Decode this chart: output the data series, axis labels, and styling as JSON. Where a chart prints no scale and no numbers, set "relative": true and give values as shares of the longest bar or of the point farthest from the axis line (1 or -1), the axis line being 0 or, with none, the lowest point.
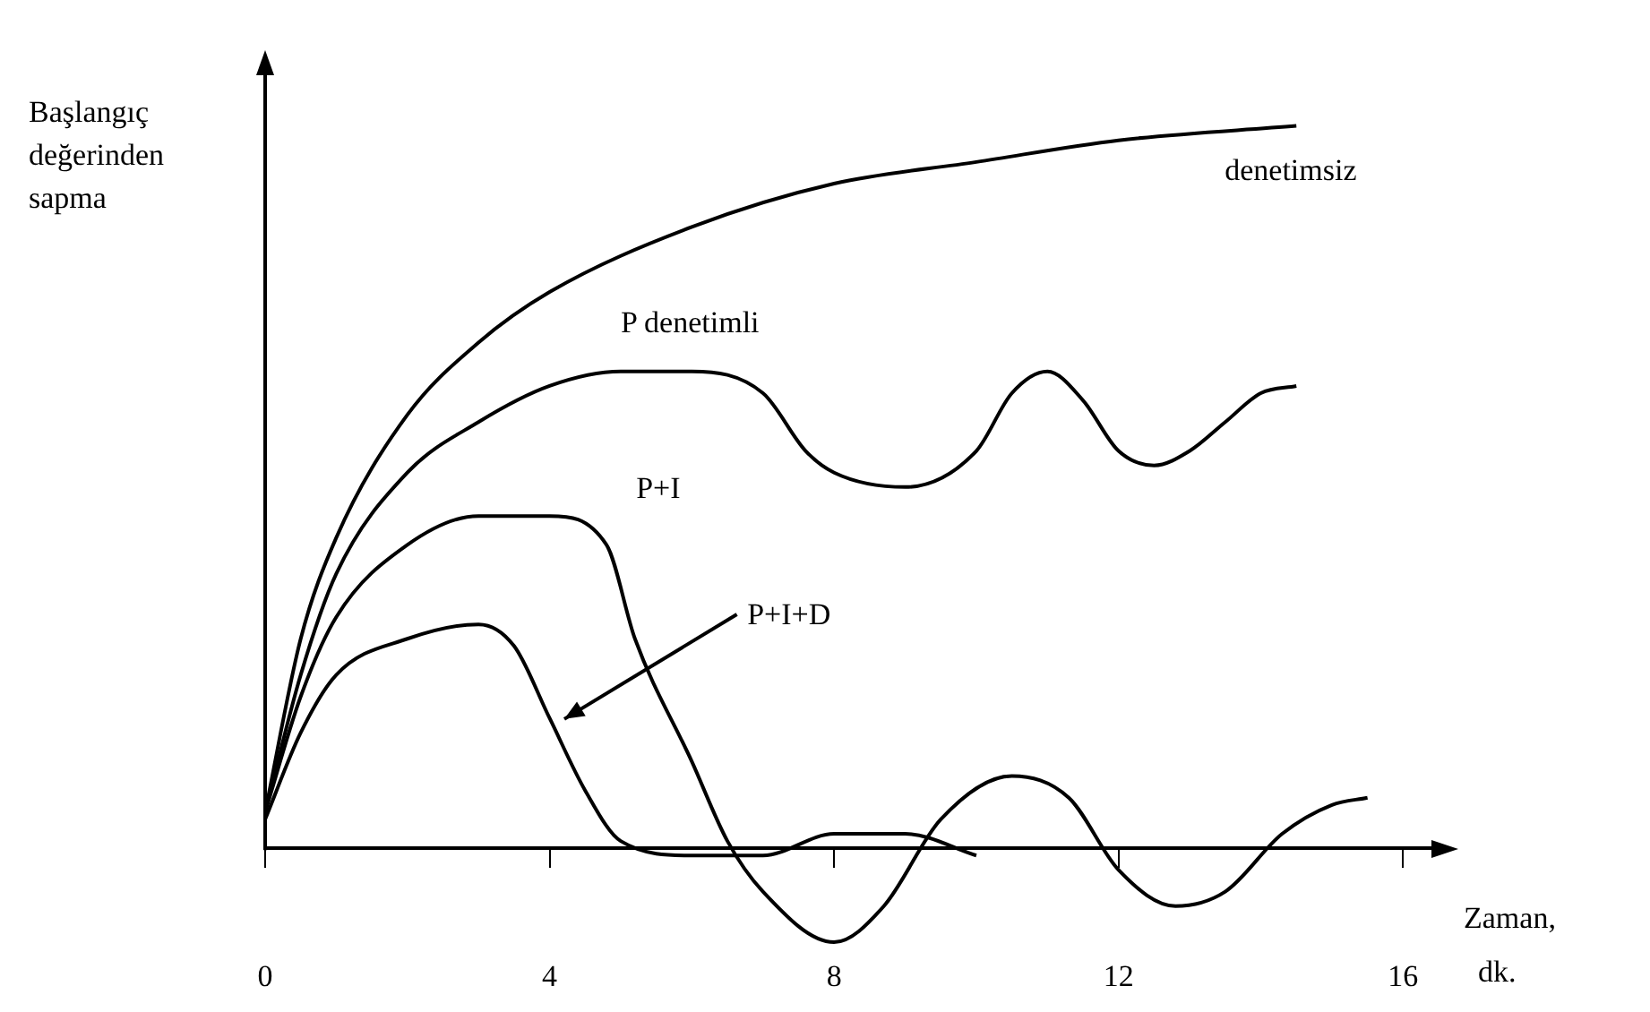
{
  "chart_data": {
    "type": "line",
    "relative": true,
    "ylabel": "Başlangıç değerinden sapma",
    "xlabel": "Zaman, dk.",
    "xlim": [
      0,
      16.5
    ],
    "xticks": [
      0,
      4,
      8,
      12,
      16
    ],
    "grid": false,
    "legend": false,
    "marker": "none",
    "line_style": "solid",
    "series": [
      {
        "name": "denetimsiz",
        "color": "#000000",
        "x": [
          0,
          0.5,
          1,
          2,
          3,
          4,
          6,
          8,
          10,
          12,
          14.5
        ],
        "values": [
          0.05,
          0.29,
          0.43,
          0.6,
          0.7,
          0.77,
          0.86,
          0.92,
          0.95,
          0.98,
          1.0
        ]
      },
      {
        "name": "P denetimli",
        "color": "#000000",
        "x": [
          0,
          0.5,
          1,
          2,
          3,
          4,
          5,
          6,
          7,
          7.6,
          8,
          9,
          10,
          10.5,
          11,
          11.5,
          12,
          12.5,
          13,
          13.5,
          14,
          14.5
        ],
        "values": [
          0.05,
          0.24,
          0.38,
          0.52,
          0.59,
          0.64,
          0.66,
          0.66,
          0.63,
          0.55,
          0.52,
          0.5,
          0.55,
          0.63,
          0.66,
          0.62,
          0.55,
          0.53,
          0.55,
          0.59,
          0.63,
          0.64
        ]
      },
      {
        "name": "P+I",
        "color": "#000000",
        "x": [
          0,
          0.5,
          1,
          2,
          3,
          4,
          4.8,
          5.2,
          6,
          6.5,
          7,
          8,
          8.7,
          9.5,
          10.5,
          11.3,
          12,
          12.8,
          13.5,
          14.3,
          15,
          15.5
        ],
        "values": [
          0.05,
          0.21,
          0.32,
          0.42,
          0.46,
          0.46,
          0.42,
          0.29,
          0.12,
          0.01,
          -0.06,
          -0.13,
          -0.08,
          0.04,
          0.1,
          0.07,
          -0.03,
          -0.08,
          -0.06,
          0.02,
          0.06,
          0.07
        ]
      },
      {
        "name": "P+I+D",
        "color": "#000000",
        "x": [
          0,
          0.5,
          1,
          2,
          3,
          3.5,
          4,
          4.5,
          5,
          6,
          7,
          8,
          9,
          10
        ],
        "values": [
          0.04,
          0.16,
          0.24,
          0.29,
          0.31,
          0.28,
          0.18,
          0.08,
          0.01,
          -0.01,
          -0.01,
          0.02,
          0.02,
          -0.01
        ]
      }
    ]
  }
}
